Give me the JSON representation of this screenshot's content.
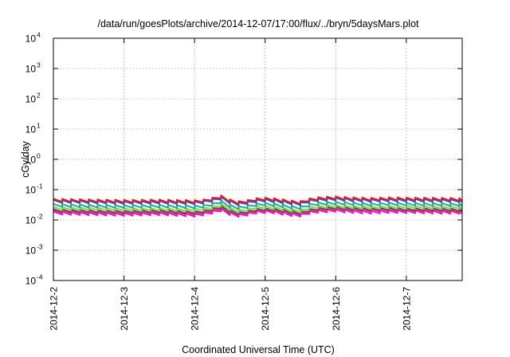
{
  "chart_data": {
    "type": "line",
    "title": "/data/run/goesPlots/archive/2014-12-07/17:00/flux/../bryn/5daysMars.plot",
    "xlabel": "Coordinated Universal Time (UTC)",
    "ylabel": "cGy/day",
    "yscale": "log",
    "ylim": [
      0.0001,
      10000
    ],
    "ytick_labels": [
      {
        "base": "10",
        "exp": "-4",
        "value": 0.0001
      },
      {
        "base": "10",
        "exp": "-3",
        "value": 0.001
      },
      {
        "base": "10",
        "exp": "-2",
        "value": 0.01
      },
      {
        "base": "10",
        "exp": "-1",
        "value": 0.1
      },
      {
        "base": "10",
        "exp": "0",
        "value": 1
      },
      {
        "base": "10",
        "exp": "1",
        "value": 10
      },
      {
        "base": "10",
        "exp": "2",
        "value": 100
      },
      {
        "base": "10",
        "exp": "3",
        "value": 1000
      },
      {
        "base": "10",
        "exp": "4",
        "value": 10000
      }
    ],
    "xlim": [
      "2014-12-02",
      "2014-12-07T19:00"
    ],
    "xtick_labels": [
      "2014-12-2",
      "2014-12-3",
      "2014-12-4",
      "2014-12-5",
      "2014-12-6",
      "2014-12-7"
    ],
    "grid": true,
    "legend": "none",
    "cycle_hours": 3,
    "sample_times": [
      "2014-12-02",
      "2014-12-02T12:00",
      "2014-12-03",
      "2014-12-03T12:00",
      "2014-12-04",
      "2014-12-04T04:00",
      "2014-12-04T09:00",
      "2014-12-04T12:00",
      "2014-12-04T16:00",
      "2014-12-04T20:00",
      "2014-12-05",
      "2014-12-05T04:00",
      "2014-12-05T08:00",
      "2014-12-05T12:00",
      "2014-12-05T16:00",
      "2014-12-05T20:00",
      "2014-12-06",
      "2014-12-06T06:00",
      "2014-12-06T12:00",
      "2014-12-06T18:00",
      "2014-12-07",
      "2014-12-07T12:00",
      "2014-12-07T19:00"
    ],
    "series": [
      {
        "color": "#e41a1c",
        "peak_values": [
          0.05,
          0.048,
          0.046,
          0.047,
          0.045,
          0.048,
          0.065,
          0.048,
          0.04,
          0.052,
          0.055,
          0.052,
          0.045,
          0.042,
          0.055,
          0.058,
          0.06,
          0.056,
          0.054,
          0.056,
          0.055,
          0.054,
          0.053
        ]
      },
      {
        "color": "#2255ee",
        "peak_values": [
          0.046,
          0.044,
          0.042,
          0.043,
          0.041,
          0.044,
          0.059,
          0.044,
          0.036,
          0.047,
          0.05,
          0.047,
          0.041,
          0.038,
          0.05,
          0.053,
          0.055,
          0.051,
          0.049,
          0.051,
          0.05,
          0.049,
          0.048
        ]
      },
      {
        "color": "#22aa99",
        "peak_values": [
          0.034,
          0.032,
          0.031,
          0.032,
          0.03,
          0.032,
          0.044,
          0.032,
          0.027,
          0.035,
          0.037,
          0.035,
          0.03,
          0.028,
          0.037,
          0.039,
          0.04,
          0.038,
          0.036,
          0.038,
          0.037,
          0.036,
          0.036
        ]
      },
      {
        "color": "#8ad04a",
        "peak_values": [
          0.027,
          0.026,
          0.025,
          0.025,
          0.024,
          0.026,
          0.035,
          0.026,
          0.021,
          0.028,
          0.03,
          0.028,
          0.024,
          0.022,
          0.03,
          0.031,
          0.032,
          0.03,
          0.029,
          0.03,
          0.03,
          0.029,
          0.029
        ]
      },
      {
        "color": "#555555",
        "peak_values": [
          0.023,
          0.022,
          0.021,
          0.022,
          0.02,
          0.022,
          0.03,
          0.022,
          0.018,
          0.024,
          0.025,
          0.024,
          0.021,
          0.019,
          0.025,
          0.027,
          0.028,
          0.026,
          0.025,
          0.026,
          0.025,
          0.025,
          0.024
        ]
      },
      {
        "color": "#ee3366",
        "peak_values": [
          0.021,
          0.02,
          0.019,
          0.02,
          0.018,
          0.02,
          0.027,
          0.02,
          0.017,
          0.022,
          0.023,
          0.022,
          0.019,
          0.018,
          0.023,
          0.024,
          0.025,
          0.024,
          0.023,
          0.024,
          0.023,
          0.022,
          0.022
        ]
      },
      {
        "color": "#ff00ff",
        "peak_values": [
          0.019,
          0.018,
          0.017,
          0.018,
          0.016,
          0.018,
          0.024,
          0.018,
          0.015,
          0.02,
          0.021,
          0.02,
          0.017,
          0.016,
          0.021,
          0.022,
          0.023,
          0.021,
          0.02,
          0.021,
          0.021,
          0.02,
          0.02
        ]
      }
    ]
  }
}
